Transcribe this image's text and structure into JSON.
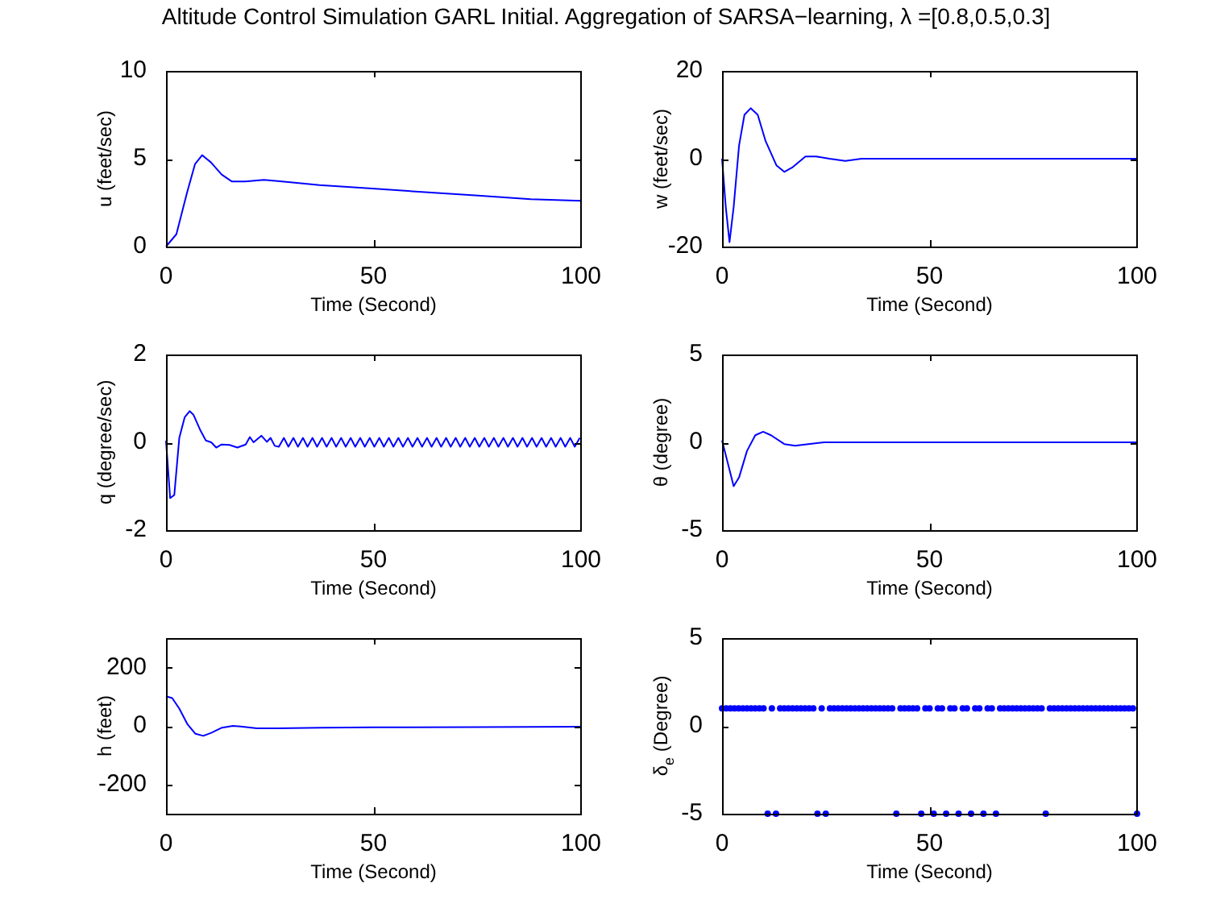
{
  "chart_data": [
    {
      "type": "line",
      "title": "Altitude Control Simulation GARL Initial. Aggregation of SARSA−learning, λ =[0.8,0.5,0.3]",
      "xlabel": "Time (Second)",
      "ylabel": "u (feet/sec)",
      "color": "#0000ff",
      "xlim": [
        0,
        100
      ],
      "xticks": [
        0,
        50,
        100
      ],
      "ylim": [
        0,
        10
      ],
      "yticks": [
        0,
        5,
        10
      ],
      "x": [
        0,
        2.5,
        5.1,
        7,
        8.7,
        10.8,
        13.4,
        15.9,
        19.1,
        23.6,
        28,
        37,
        49.7,
        62.4,
        75.2,
        87.9,
        100
      ],
      "values": [
        0,
        0.7,
        3.1,
        4.7,
        5.2,
        4.8,
        4.1,
        3.7,
        3.7,
        3.8,
        3.7,
        3.5,
        3.3,
        3.1,
        2.9,
        2.7,
        2.6
      ]
    },
    {
      "type": "line",
      "xlabel": "Time (Second)",
      "ylabel": "w (feet/sec)",
      "color": "#0000ff",
      "xlim": [
        0,
        100
      ],
      "xticks": [
        0,
        50,
        100
      ],
      "ylim": [
        -20,
        20
      ],
      "yticks": [
        -20,
        0,
        20
      ],
      "x": [
        0,
        0.9,
        1.8,
        2.8,
        4.1,
        5.4,
        6.9,
        8.6,
        10.5,
        13.1,
        15,
        16.9,
        20.1,
        22.7,
        25.9,
        29.7,
        33.6,
        50,
        75,
        100
      ],
      "values": [
        0,
        -11,
        -19,
        -11,
        3,
        10,
        11.5,
        10,
        4,
        -1.5,
        -3,
        -2,
        0.5,
        0.5,
        0,
        -0.5,
        0,
        0,
        0,
        0
      ]
    },
    {
      "type": "line",
      "xlabel": "Time (Second)",
      "ylabel": "q (degree/sec)",
      "color": "#0000ff",
      "xlim": [
        0,
        100
      ],
      "xticks": [
        0,
        50,
        100
      ],
      "ylim": [
        -2,
        2
      ],
      "yticks": [
        -2,
        0,
        2
      ],
      "x": [
        0,
        1,
        2,
        3.2,
        4.5,
        5.7,
        6.6,
        8.3,
        9.6,
        10.9,
        12.1,
        13.4,
        15.3,
        17.2,
        19.2,
        20.2,
        21.1,
        23,
        24.3,
        25.2,
        26.2,
        27.2,
        28.4,
        29.5,
        30.7,
        31.8,
        33,
        34.1,
        35.3,
        36.4,
        37.6,
        38.7,
        39.9,
        41,
        42.2,
        43.3,
        44.5,
        45.6,
        46.8,
        47.9,
        49.1,
        50.2,
        51.4,
        52.5,
        53.7,
        54.8,
        56,
        57.1,
        58.3,
        59.4,
        60.6,
        61.7,
        62.9,
        64,
        65.2,
        66.3,
        67.5,
        68.6,
        69.8,
        70.9,
        72.1,
        73.2,
        74.4,
        75.5,
        76.7,
        77.8,
        79,
        80.1,
        81.3,
        82.4,
        83.6,
        84.7,
        85.9,
        87,
        88.2,
        89.3,
        90.5,
        91.6,
        92.8,
        93.9,
        95.1,
        96.2,
        97.4,
        98.5,
        99.7
      ],
      "values": [
        0.04,
        -1.27,
        -1.2,
        0.1,
        0.57,
        0.71,
        0.63,
        0.27,
        0.04,
        0,
        -0.12,
        -0.05,
        -0.06,
        -0.12,
        -0.05,
        0.12,
        0,
        0.15,
        0.01,
        0.1,
        -0.08,
        -0.1,
        0.1,
        -0.1,
        0.1,
        -0.1,
        0.1,
        -0.1,
        0.1,
        -0.1,
        0.1,
        -0.1,
        0.1,
        -0.1,
        0.1,
        -0.1,
        0.1,
        -0.1,
        0.1,
        -0.1,
        0.1,
        -0.1,
        0.1,
        -0.1,
        0.1,
        -0.1,
        0.1,
        -0.1,
        0.1,
        -0.1,
        0.1,
        -0.1,
        0.1,
        -0.1,
        0.1,
        -0.1,
        0.1,
        -0.1,
        0.1,
        -0.1,
        0.1,
        -0.1,
        0.1,
        -0.1,
        0.1,
        -0.1,
        0.1,
        -0.1,
        0.1,
        -0.1,
        0.1,
        -0.1,
        0.1,
        -0.1,
        0.1,
        -0.1,
        0.1,
        -0.1,
        0.1,
        -0.1,
        0.1,
        -0.1,
        0.1,
        -0.1,
        0.1
      ]
    },
    {
      "type": "line",
      "xlabel": "Time (Second)",
      "ylabel": "θ (degree)",
      "color": "#0000ff",
      "xlim": [
        0,
        100
      ],
      "xticks": [
        0,
        50,
        100
      ],
      "ylim": [
        -5,
        5
      ],
      "yticks": [
        -5,
        0,
        5
      ],
      "x": [
        0,
        1.3,
        2.8,
        4.1,
        6,
        8,
        9.9,
        11.8,
        15,
        17.6,
        20.8,
        24.6,
        30,
        50,
        75,
        100
      ],
      "values": [
        0.1,
        -1.1,
        -2.5,
        -2,
        -0.5,
        0.4,
        0.6,
        0.4,
        -0.1,
        -0.2,
        -0.1,
        0,
        0,
        0,
        0,
        0
      ]
    },
    {
      "type": "line",
      "xlabel": "Time (Second)",
      "ylabel": "h (feet)",
      "color": "#0000ff",
      "xlim": [
        0,
        100
      ],
      "xticks": [
        0,
        50,
        100
      ],
      "ylim": [
        -300,
        300
      ],
      "yticks": [
        -200,
        0,
        200
      ],
      "x": [
        0,
        1.5,
        3.2,
        5.2,
        7.1,
        9,
        11,
        13.5,
        16.1,
        18,
        21.9,
        27,
        37.4,
        50,
        75,
        100
      ],
      "values": [
        101,
        95,
        59,
        5,
        -27,
        -34,
        -23,
        -6,
        0,
        -2,
        -8,
        -8,
        -6,
        -5,
        -4,
        -3
      ]
    },
    {
      "type": "scatter",
      "marker": "circle",
      "xlabel": "Time (Second)",
      "ylabel": "δ$_{e}$ (Degree)",
      "color": "#0000ff",
      "xlim": [
        0,
        100
      ],
      "xticks": [
        0,
        50,
        100
      ],
      "ylim": [
        -5,
        5
      ],
      "yticks": [
        -5,
        0,
        5
      ],
      "x": [
        0,
        1,
        2,
        3,
        4,
        5,
        6,
        7,
        8,
        9,
        10,
        11,
        12,
        13,
        14,
        15,
        16,
        17,
        18,
        19,
        20,
        21,
        22,
        23,
        24,
        25,
        26,
        27,
        28,
        29,
        30,
        31,
        32,
        33,
        34,
        35,
        36,
        37,
        38,
        39,
        40,
        41,
        42,
        43,
        44,
        45,
        46,
        47,
        48,
        49,
        50,
        51,
        52,
        53,
        54,
        55,
        56,
        57,
        58,
        59,
        60,
        61,
        62,
        63,
        64,
        65,
        66,
        67,
        68,
        69,
        70,
        71,
        72,
        73,
        74,
        75,
        76,
        77,
        78,
        79,
        80,
        81,
        82,
        83,
        84,
        85,
        86,
        87,
        88,
        89,
        90,
        91,
        92,
        93,
        94,
        95,
        96,
        97,
        98,
        99,
        100
      ],
      "values": [
        1,
        1,
        1,
        1,
        1,
        1,
        1,
        1,
        1,
        1,
        1,
        -5,
        1,
        -5,
        1,
        1,
        1,
        1,
        1,
        1,
        1,
        1,
        1,
        -5,
        1,
        -5,
        1,
        1,
        1,
        1,
        1,
        1,
        1,
        1,
        1,
        1,
        1,
        1,
        1,
        1,
        1,
        1,
        -5,
        1,
        1,
        1,
        1,
        1,
        -5,
        1,
        1,
        -5,
        1,
        1,
        -5,
        1,
        1,
        -5,
        1,
        1,
        -5,
        1,
        1,
        -5,
        1,
        1,
        -5,
        1,
        1,
        1,
        1,
        1,
        1,
        1,
        1,
        1,
        1,
        1,
        -5,
        1,
        1,
        1,
        1,
        1,
        1,
        1,
        1,
        1,
        1,
        1,
        1,
        1,
        1,
        1,
        1,
        1,
        1,
        1,
        1,
        1,
        -5
      ]
    }
  ]
}
